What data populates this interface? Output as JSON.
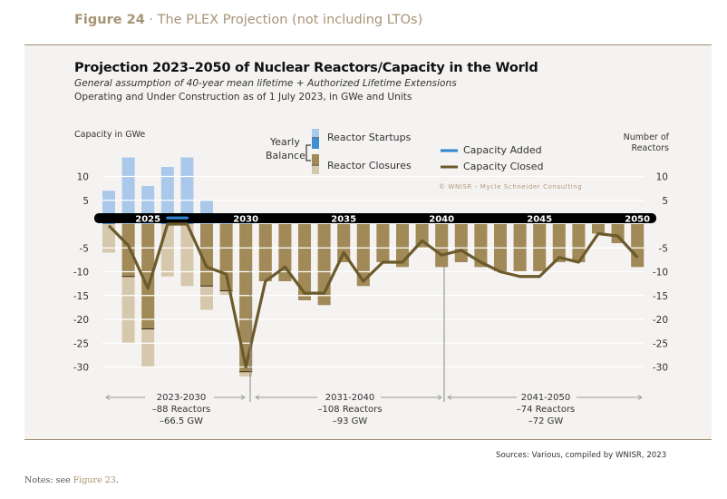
{
  "figure": {
    "label": "Figure 24",
    "separator": " · ",
    "caption": "The PLEX Projection (not including LTOs)"
  },
  "chart_title": "Projection 2023–2050 of Nuclear Reactors/Capacity in the World",
  "chart_subtitle_italic": "General assumption of 40-year mean lifetime + Authorized Lifetime Extensions",
  "chart_subtitle": "Operating and Under Construction as of 1 July 2023, in GWe and Units",
  "left_axis_title": "Capacity in GWe",
  "right_axis_title_line1": "Number of",
  "right_axis_title_line2": "Reactors",
  "legend": {
    "yearly_line1": "Yearly",
    "yearly_line2": "Balance",
    "startups": "Reactor Startups",
    "closures": "Reactor Closures",
    "capacity_added": "Capacity Added",
    "capacity_closed": "Capacity Closed"
  },
  "copyright": "© WNISR - Mycle Schneider Consulting",
  "periods": [
    {
      "range": "2023-2030",
      "reactors": "–88 Reactors",
      "gw": "–66.5 GW"
    },
    {
      "range": "2031-2040",
      "reactors": "–108 Reactors",
      "gw": "–93 GW"
    },
    {
      "range": "2041-2050",
      "reactors": "–74 Reactors",
      "gw": "–72 GW"
    }
  ],
  "sources": "Sources: Various, compiled by WNISR, 2023",
  "notes_prefix": "Notes: see ",
  "notes_link": "Figure 23",
  "notes_suffix": ".",
  "colors": {
    "startups": "#a9c8ea",
    "startups_balance": "#3f8fd6",
    "closures": "#d6c8ad",
    "closures_balance": "#a18a58",
    "capacity_added": "#2f86d0",
    "capacity_closed": "#6b5a2b",
    "axis_band": "#000000",
    "gridline": "#ffffff"
  },
  "chart_data": {
    "type": "bar",
    "title": "Projection 2023–2050 of Nuclear Reactors/Capacity in the World",
    "ylabel_left": "Capacity in GWe",
    "ylabel_right": "Number of Reactors",
    "ylim": [
      -32,
      15
    ],
    "yticks": [
      10,
      5,
      -5,
      -10,
      -15,
      -20,
      -25,
      -30
    ],
    "x_tick_labels": [
      "2025",
      "2030",
      "2035",
      "2040",
      "2045",
      "2050"
    ],
    "x": [
      2023,
      2024,
      2025,
      2026,
      2027,
      2028,
      2029,
      2030,
      2031,
      2032,
      2033,
      2034,
      2035,
      2036,
      2037,
      2038,
      2039,
      2040,
      2041,
      2042,
      2043,
      2044,
      2045,
      2046,
      2047,
      2048,
      2049,
      2050
    ],
    "series": [
      {
        "name": "Reactor Startups",
        "values": [
          7,
          14,
          8,
          12,
          14,
          5,
          2,
          2,
          0,
          0,
          0,
          0,
          0,
          0,
          0,
          0,
          0,
          0,
          0,
          0,
          0,
          0,
          0,
          0,
          0,
          0,
          0,
          0
        ]
      },
      {
        "name": "Reactor Closures",
        "values": [
          -6,
          -25,
          -30,
          -11,
          -13,
          -18,
          -15,
          -32,
          -12,
          -12,
          -16,
          -17,
          -8,
          -13,
          -8,
          -9,
          -5,
          -9,
          -8,
          -9,
          -10,
          -10,
          -10,
          -8,
          -8,
          -2,
          -4,
          -9
        ]
      },
      {
        "name": "Yearly Balance",
        "values": [
          1,
          -11,
          -22,
          1,
          1,
          -13,
          -14,
          -31,
          -12,
          -12,
          -16,
          -17,
          -8,
          -13,
          -8,
          -9,
          -5,
          -9,
          -8,
          -9,
          -10,
          -10,
          -10,
          -8,
          -8,
          -2,
          -4,
          -9
        ]
      },
      {
        "name": "Capacity Added",
        "type": "line",
        "values": [
          null,
          null,
          null,
          1.3,
          1.3,
          null,
          null,
          null,
          null,
          null,
          null,
          null,
          null,
          null,
          null,
          null,
          null,
          null,
          null,
          null,
          null,
          null,
          null,
          null,
          null,
          null,
          null,
          null
        ]
      },
      {
        "name": "Capacity Closed",
        "type": "line",
        "values": [
          -0.3,
          -4.5,
          -13.5,
          0,
          0,
          -9,
          -10.5,
          -30,
          -12,
          -9,
          -14.5,
          -14.5,
          -6,
          -12,
          -8,
          -8,
          -3.5,
          -6.5,
          -5.5,
          -8,
          -10,
          -11,
          -11,
          -7,
          -8,
          -2,
          -2.5,
          -7
        ]
      }
    ],
    "period_dividers": [
      2030.5,
      2040
    ],
    "legend_position": "top"
  }
}
